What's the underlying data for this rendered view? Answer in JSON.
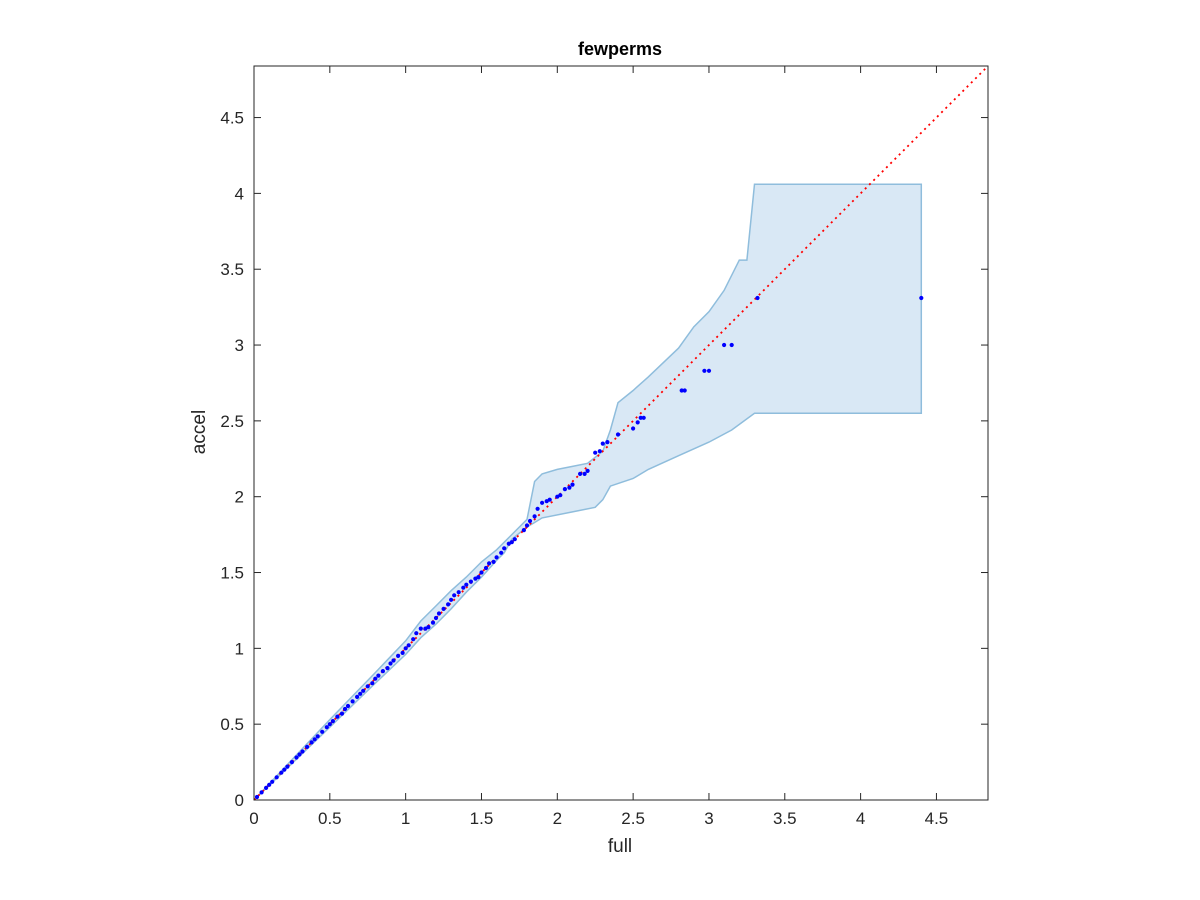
{
  "chart_data": {
    "type": "scatter",
    "title": "fewperms",
    "xlabel": "full",
    "ylabel": "accel",
    "xlim": [
      0,
      4.84
    ],
    "ylim": [
      0,
      4.84
    ],
    "xticks": [
      0,
      0.5,
      1,
      1.5,
      2,
      2.5,
      3,
      3.5,
      4,
      4.5
    ],
    "yticks": [
      0,
      0.5,
      1,
      1.5,
      2,
      2.5,
      3,
      3.5,
      4,
      4.5
    ],
    "xtick_labels": [
      "0",
      "0.5",
      "1",
      "1.5",
      "2",
      "2.5",
      "3",
      "3.5",
      "4",
      "4.5"
    ],
    "ytick_labels": [
      "0",
      "0.5",
      "1",
      "1.5",
      "2",
      "2.5",
      "3",
      "3.5",
      "4",
      "4.5"
    ],
    "grid": false,
    "colors": {
      "points": "#0000ff",
      "reference": "#ff0000",
      "band_fill": "#d9e8f5",
      "band_edge": "#8fbddc",
      "axes": "#262626"
    },
    "reference_line": {
      "x": [
        0,
        4.84
      ],
      "y": [
        0,
        4.84
      ],
      "style": "dotted"
    },
    "band": {
      "upper": [
        [
          0,
          0
        ],
        [
          0.5,
          0.53
        ],
        [
          0.8,
          0.84
        ],
        [
          1.0,
          1.05
        ],
        [
          1.1,
          1.18
        ],
        [
          1.2,
          1.28
        ],
        [
          1.3,
          1.38
        ],
        [
          1.4,
          1.47
        ],
        [
          1.5,
          1.57
        ],
        [
          1.6,
          1.65
        ],
        [
          1.7,
          1.75
        ],
        [
          1.8,
          1.85
        ],
        [
          1.85,
          2.1
        ],
        [
          1.9,
          2.15
        ],
        [
          2.0,
          2.18
        ],
        [
          2.1,
          2.2
        ],
        [
          2.2,
          2.22
        ],
        [
          2.3,
          2.3
        ],
        [
          2.35,
          2.44
        ],
        [
          2.4,
          2.62
        ],
        [
          2.5,
          2.7
        ],
        [
          2.6,
          2.79
        ],
        [
          2.8,
          2.98
        ],
        [
          2.9,
          3.12
        ],
        [
          3.0,
          3.22
        ],
        [
          3.1,
          3.36
        ],
        [
          3.2,
          3.56
        ],
        [
          3.25,
          3.56
        ],
        [
          3.3,
          4.06
        ],
        [
          4.4,
          4.06
        ]
      ],
      "lower": [
        [
          4.4,
          2.55
        ],
        [
          3.3,
          2.55
        ],
        [
          3.15,
          2.44
        ],
        [
          3.0,
          2.36
        ],
        [
          2.8,
          2.27
        ],
        [
          2.6,
          2.18
        ],
        [
          2.5,
          2.12
        ],
        [
          2.35,
          2.07
        ],
        [
          2.3,
          1.98
        ],
        [
          2.25,
          1.93
        ],
        [
          2.1,
          1.9
        ],
        [
          1.9,
          1.86
        ],
        [
          1.85,
          1.83
        ],
        [
          1.8,
          1.8
        ],
        [
          1.7,
          1.72
        ],
        [
          1.65,
          1.63
        ],
        [
          1.6,
          1.58
        ],
        [
          1.5,
          1.47
        ],
        [
          1.4,
          1.37
        ],
        [
          1.3,
          1.26
        ],
        [
          1.2,
          1.16
        ],
        [
          1.1,
          1.07
        ],
        [
          1.0,
          0.96
        ],
        [
          0.8,
          0.77
        ],
        [
          0.5,
          0.48
        ],
        [
          0,
          0
        ]
      ]
    },
    "points": {
      "x": [
        0.02,
        0.05,
        0.08,
        0.1,
        0.12,
        0.15,
        0.18,
        0.2,
        0.22,
        0.25,
        0.28,
        0.3,
        0.32,
        0.35,
        0.38,
        0.4,
        0.42,
        0.45,
        0.48,
        0.5,
        0.52,
        0.55,
        0.58,
        0.6,
        0.62,
        0.65,
        0.68,
        0.7,
        0.72,
        0.75,
        0.78,
        0.8,
        0.82,
        0.85,
        0.88,
        0.9,
        0.92,
        0.95,
        0.98,
        1.0,
        1.02,
        1.05,
        1.07,
        1.1,
        1.13,
        1.15,
        1.18,
        1.2,
        1.22,
        1.25,
        1.28,
        1.3,
        1.32,
        1.35,
        1.38,
        1.4,
        1.43,
        1.46,
        1.48,
        1.5,
        1.53,
        1.55,
        1.58,
        1.6,
        1.63,
        1.65,
        1.68,
        1.7,
        1.72,
        1.78,
        1.8,
        1.82,
        1.85,
        1.87,
        1.9,
        1.93,
        1.95,
        2.0,
        2.02,
        2.05,
        2.08,
        2.1,
        2.15,
        2.18,
        2.2,
        2.25,
        2.28,
        2.3,
        2.33,
        2.4,
        2.5,
        2.53,
        2.55,
        2.57,
        2.82,
        2.84,
        2.97,
        3.0,
        3.1,
        3.15,
        3.32,
        4.4
      ],
      "y": [
        0.02,
        0.05,
        0.08,
        0.1,
        0.12,
        0.15,
        0.18,
        0.2,
        0.22,
        0.25,
        0.28,
        0.3,
        0.32,
        0.35,
        0.38,
        0.4,
        0.42,
        0.45,
        0.48,
        0.5,
        0.52,
        0.55,
        0.57,
        0.6,
        0.62,
        0.65,
        0.68,
        0.7,
        0.72,
        0.75,
        0.77,
        0.8,
        0.82,
        0.85,
        0.87,
        0.9,
        0.92,
        0.95,
        0.97,
        1.0,
        1.02,
        1.06,
        1.1,
        1.13,
        1.13,
        1.14,
        1.17,
        1.2,
        1.23,
        1.26,
        1.29,
        1.32,
        1.35,
        1.37,
        1.4,
        1.42,
        1.44,
        1.46,
        1.47,
        1.5,
        1.53,
        1.56,
        1.57,
        1.6,
        1.63,
        1.66,
        1.69,
        1.7,
        1.72,
        1.78,
        1.81,
        1.84,
        1.87,
        1.92,
        1.96,
        1.97,
        1.98,
        2.0,
        2.01,
        2.05,
        2.06,
        2.08,
        2.15,
        2.15,
        2.17,
        2.29,
        2.3,
        2.35,
        2.36,
        2.41,
        2.45,
        2.49,
        2.52,
        2.52,
        2.7,
        2.7,
        2.83,
        2.83,
        3.0,
        3.0,
        3.31,
        3.31
      ]
    }
  }
}
